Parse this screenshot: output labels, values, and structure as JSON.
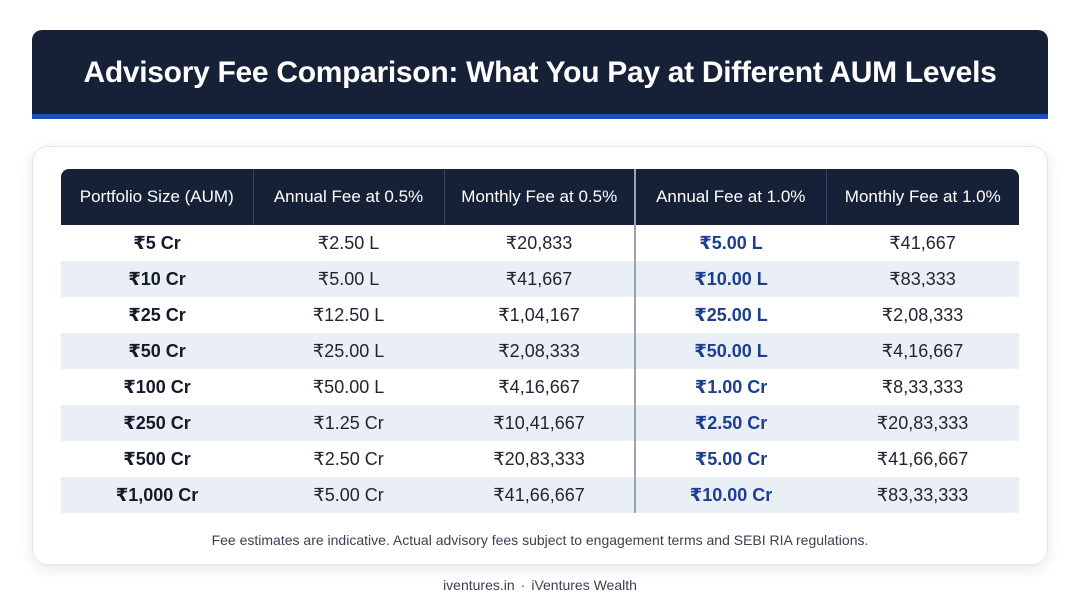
{
  "header": {
    "title": "Advisory Fee Comparison: What You Pay at Different AUM Levels"
  },
  "table": {
    "columns": [
      "Portfolio Size (AUM)",
      "Annual Fee at 0.5%",
      "Monthly Fee at 0.5%",
      "Annual Fee at 1.0%",
      "Monthly Fee at 1.0%"
    ],
    "rows": [
      [
        "₹5 Cr",
        "₹2.50 L",
        "₹20,833",
        "₹5.00 L",
        "₹41,667"
      ],
      [
        "₹10 Cr",
        "₹5.00 L",
        "₹41,667",
        "₹10.00 L",
        "₹83,333"
      ],
      [
        "₹25 Cr",
        "₹12.50 L",
        "₹1,04,167",
        "₹25.00 L",
        "₹2,08,333"
      ],
      [
        "₹50 Cr",
        "₹25.00 L",
        "₹2,08,333",
        "₹50.00 L",
        "₹4,16,667"
      ],
      [
        "₹100 Cr",
        "₹50.00 L",
        "₹4,16,667",
        "₹1.00 Cr",
        "₹8,33,333"
      ],
      [
        "₹250 Cr",
        "₹1.25 Cr",
        "₹10,41,667",
        "₹2.50 Cr",
        "₹20,83,333"
      ],
      [
        "₹500 Cr",
        "₹2.50 Cr",
        "₹20,83,333",
        "₹5.00 Cr",
        "₹41,66,667"
      ],
      [
        "₹1,000 Cr",
        "₹5.00 Cr",
        "₹41,66,667",
        "₹10.00 Cr",
        "₹83,33,333"
      ]
    ]
  },
  "note": "Fee estimates are indicative. Actual advisory fees subject to engagement terms and SEBI RIA regulations.",
  "footer": {
    "site": "iventures.in",
    "separator": "·",
    "brand": "iVentures Wealth"
  },
  "colors": {
    "header_bg": "#162138",
    "accent_bar": "#1e4fbf",
    "highlight_text": "#1d3f8f",
    "row_alt_bg": "#eaeff6"
  }
}
